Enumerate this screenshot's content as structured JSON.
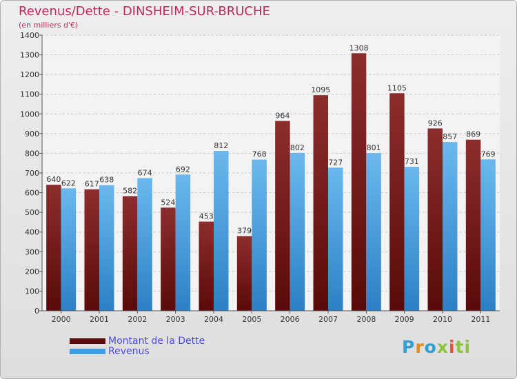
{
  "header": {
    "title": "Revenus/Dette - DINSHEIM-SUR-BRUCHE",
    "subtitle": "(en milliers d'€)"
  },
  "legend": {
    "items": [
      "Montant de la Dette",
      "Revenus"
    ]
  },
  "logo": {
    "text": "Proxiti",
    "letters": [
      "P",
      "r",
      "o",
      "x",
      "i",
      "ti"
    ]
  },
  "colors": {
    "title": "#c0285a",
    "debt_top": "#8c2d2d",
    "debt_bottom": "#5a0a0a",
    "revenue_top": "#6ab8ee",
    "revenue_bottom": "#2c80c4",
    "legend_text": "#4a4ae0"
  },
  "chart_data": {
    "type": "bar",
    "title": "Revenus/Dette - DINSHEIM-SUR-BRUCHE",
    "ylabel": "(en milliers d'€)",
    "xlabel": "",
    "ylim": [
      0,
      1400
    ],
    "ytick_step": 100,
    "grid": true,
    "categories": [
      "2000",
      "2001",
      "2002",
      "2003",
      "2004",
      "2005",
      "2006",
      "2007",
      "2008",
      "2009",
      "2010",
      "2011"
    ],
    "series": [
      {
        "name": "Montant de la Dette",
        "values": [
          640,
          617,
          582,
          524,
          453,
          379,
          964,
          1095,
          1308,
          1105,
          926,
          869
        ]
      },
      {
        "name": "Revenus",
        "values": [
          622,
          638,
          674,
          692,
          812,
          768,
          802,
          727,
          801,
          731,
          857,
          769
        ]
      }
    ],
    "legend_position": "bottom-left"
  }
}
